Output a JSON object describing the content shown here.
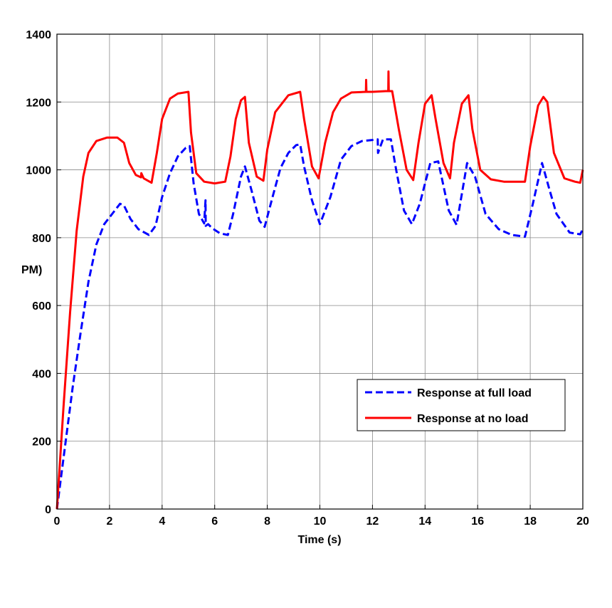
{
  "chart_data": {
    "type": "line",
    "xlabel": "Time (s)",
    "ylabel": "PM)",
    "xlim": [
      0,
      20
    ],
    "ylim": [
      0,
      1400
    ],
    "xticks": [
      "0",
      "2",
      "4",
      "6",
      "8",
      "10",
      "12",
      "14",
      "16",
      "18",
      "20"
    ],
    "yticks": [
      "0",
      "200",
      "400",
      "600",
      "800",
      "1000",
      "1200",
      "1400"
    ],
    "grid": true,
    "legend_position": "bottom-right",
    "series": [
      {
        "name": "Response at full load",
        "color": "#0000ff",
        "style": "dashed",
        "x": [
          0,
          0.3,
          0.6,
          0.9,
          1.2,
          1.5,
          1.8,
          2.1,
          2.4,
          2.55,
          2.8,
          3.1,
          3.5,
          3.75,
          4.0,
          4.3,
          4.6,
          4.9,
          5.05,
          5.2,
          5.4,
          5.6,
          5.65,
          5.66,
          5.75,
          5.9,
          6.2,
          6.5,
          6.7,
          7.0,
          7.15,
          7.4,
          7.7,
          7.9,
          8.2,
          8.5,
          8.8,
          9.1,
          9.25,
          9.4,
          9.7,
          10.0,
          10.4,
          10.8,
          11.2,
          11.6,
          12.0,
          12.2,
          12.21,
          12.4,
          12.7,
          12.9,
          13.2,
          13.5,
          13.8,
          14.2,
          14.5,
          14.9,
          15.2,
          15.6,
          15.9,
          16.3,
          16.8,
          17.3,
          17.8,
          18.1,
          18.45,
          18.7,
          19.0,
          19.5,
          19.9,
          20.0
        ],
        "y": [
          0,
          180,
          360,
          520,
          670,
          780,
          840,
          870,
          900,
          895,
          855,
          825,
          808,
          835,
          920,
          990,
          1040,
          1065,
          1070,
          960,
          870,
          842,
          910,
          835,
          840,
          828,
          813,
          808,
          870,
          980,
          1010,
          940,
          850,
          832,
          920,
          1005,
          1050,
          1073,
          1075,
          1010,
          910,
          840,
          920,
          1030,
          1070,
          1085,
          1088,
          1090,
          1050,
          1090,
          1090,
          1000,
          880,
          840,
          900,
          1020,
          1025,
          880,
          838,
          1020,
          980,
          870,
          825,
          808,
          803,
          900,
          1020,
          950,
          870,
          815,
          810,
          825
        ]
      },
      {
        "name": "Response at no load",
        "color": "#ff0000",
        "style": "solid",
        "x": [
          0,
          0.25,
          0.5,
          0.75,
          1.0,
          1.2,
          1.5,
          1.9,
          2.3,
          2.55,
          2.75,
          3.0,
          3.2,
          3.21,
          3.3,
          3.6,
          3.8,
          4.0,
          4.3,
          4.6,
          5.0,
          5.1,
          5.3,
          5.6,
          6.0,
          6.4,
          6.6,
          6.8,
          7.0,
          7.15,
          7.3,
          7.6,
          7.85,
          8.0,
          8.3,
          8.8,
          9.25,
          9.4,
          9.7,
          9.95,
          10.2,
          10.5,
          10.8,
          11.2,
          11.75,
          11.76,
          11.77,
          12.0,
          12.5,
          12.6,
          12.61,
          12.62,
          12.75,
          13.0,
          13.3,
          13.55,
          13.75,
          14.0,
          14.25,
          14.4,
          14.7,
          14.95,
          15.1,
          15.4,
          15.65,
          15.8,
          16.1,
          16.5,
          17.0,
          17.5,
          17.8,
          18.0,
          18.3,
          18.5,
          18.65,
          18.9,
          19.3,
          19.7,
          19.9,
          20.0
        ],
        "y": [
          0,
          300,
          580,
          820,
          980,
          1050,
          1085,
          1095,
          1095,
          1080,
          1020,
          985,
          978,
          990,
          975,
          962,
          1050,
          1150,
          1210,
          1225,
          1230,
          1110,
          990,
          965,
          960,
          965,
          1040,
          1150,
          1205,
          1215,
          1080,
          980,
          968,
          1060,
          1170,
          1220,
          1230,
          1150,
          1010,
          975,
          1080,
          1170,
          1210,
          1228,
          1230,
          1265,
          1230,
          1230,
          1232,
          1232,
          1290,
          1232,
          1232,
          1120,
          1000,
          970,
          1080,
          1195,
          1220,
          1150,
          1020,
          975,
          1080,
          1195,
          1220,
          1120,
          1000,
          972,
          965,
          965,
          965,
          1070,
          1190,
          1215,
          1200,
          1050,
          975,
          965,
          962,
          1000
        ]
      }
    ]
  }
}
